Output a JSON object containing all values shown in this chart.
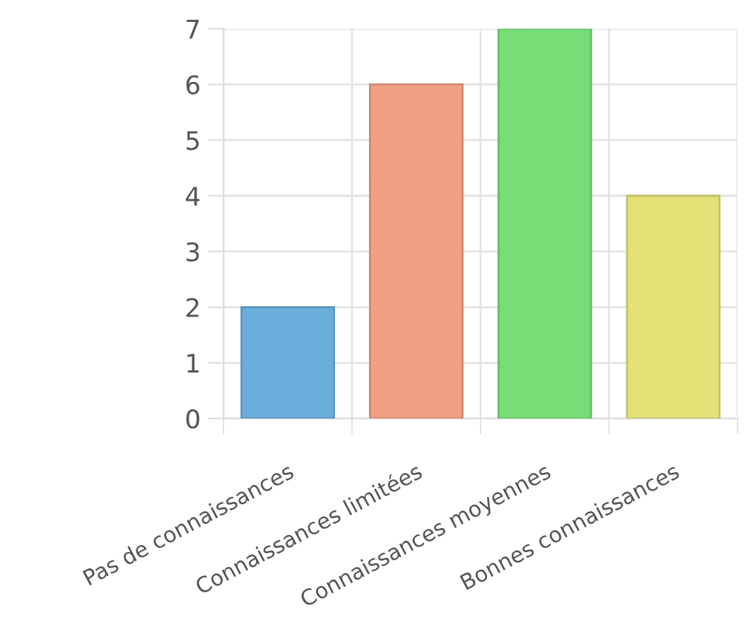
{
  "chart_data": {
    "type": "bar",
    "categories": [
      "Pas de connaissances",
      "Connaissances limitées",
      "Connaissances moyennes",
      "Bonnes connaissances"
    ],
    "values": [
      2,
      6,
      7,
      4
    ],
    "colors": [
      "#6aaedb",
      "#f0a083",
      "#77dd77",
      "#e4e277"
    ],
    "ylim": [
      0,
      7
    ],
    "yticks": [
      0,
      1,
      2,
      3,
      4,
      5,
      6,
      7
    ],
    "grid": true
  }
}
